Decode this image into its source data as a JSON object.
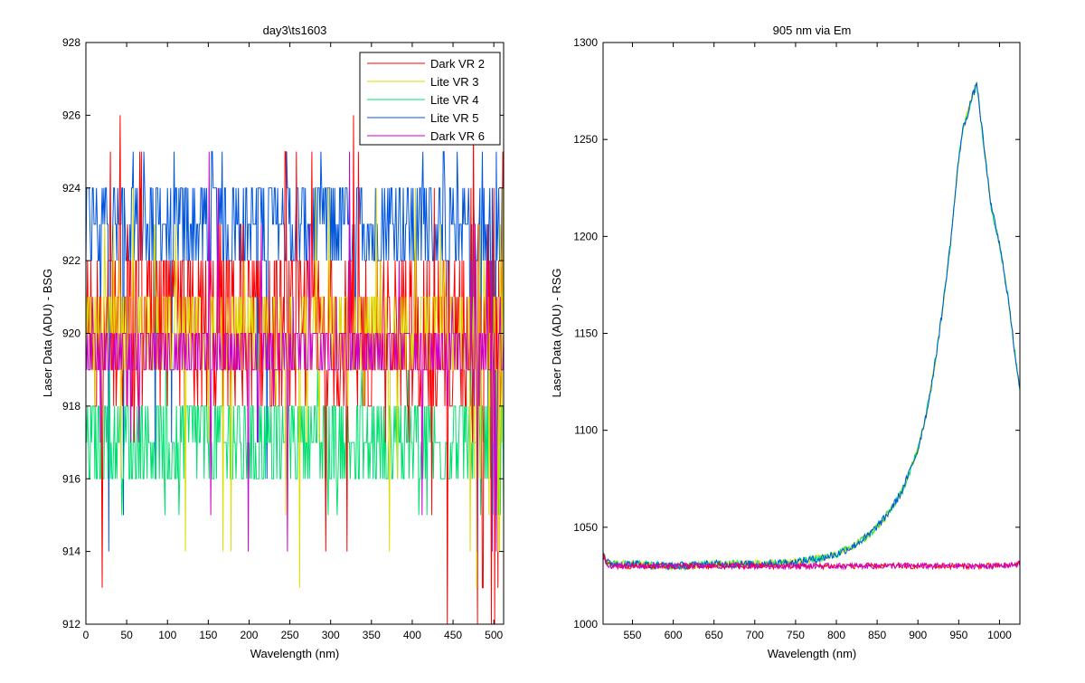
{
  "chart_data": [
    {
      "type": "line",
      "title": "day3\\ts1603",
      "xlabel": "Wavelength (nm)",
      "ylabel": "Laser Data (ADU) - BSG",
      "xlim": [
        0,
        512
      ],
      "ylim": [
        912,
        928
      ],
      "xticks": [
        0,
        50,
        100,
        150,
        200,
        250,
        300,
        350,
        400,
        450,
        500
      ],
      "yticks": [
        912,
        914,
        916,
        918,
        920,
        922,
        924,
        926,
        928
      ],
      "xtick_labels": [
        "0",
        "50",
        "100",
        "150",
        "200",
        "250",
        "300",
        "350",
        "400",
        "450",
        "500"
      ],
      "ytick_labels": [
        "912",
        "914",
        "916",
        "918",
        "920",
        "922",
        "924",
        "926",
        "928"
      ],
      "grid": false,
      "legend_position": "top-right",
      "note": "Noisy integer-valued traces (ADU counts) per pixel index 0-512; values summarized as baseline level with typical range.",
      "series": [
        {
          "name": "Dark VR 2",
          "color": "#ff0000",
          "baseline": 920,
          "range": [
            918,
            922
          ],
          "extreme_min": 912,
          "extreme_max": 926
        },
        {
          "name": "Lite VR 3",
          "color": "#dddd00",
          "baseline": 920,
          "range": [
            919,
            921
          ],
          "extreme_min": 913,
          "extreme_max": 924
        },
        {
          "name": "Lite VR 4",
          "color": "#00e070",
          "baseline": 917,
          "range": [
            916,
            918
          ],
          "extreme_min": 915,
          "extreme_max": 919
        },
        {
          "name": "Lite VR 5",
          "color": "#0055dd",
          "baseline": 923,
          "range": [
            922,
            924
          ],
          "extreme_min": 914,
          "extreme_max": 925
        },
        {
          "name": "Dark VR 6",
          "color": "#cc00cc",
          "baseline": 919.5,
          "range": [
            919,
            920
          ],
          "extreme_min": 914,
          "extreme_max": 925
        }
      ]
    },
    {
      "type": "line",
      "title": "905 nm via Em",
      "xlabel": "Wavelength (nm)",
      "ylabel": "Laser Data (ADU) - RSG",
      "xlim": [
        514,
        1025
      ],
      "ylim": [
        1000,
        1300
      ],
      "xticks": [
        550,
        600,
        650,
        700,
        750,
        800,
        850,
        900,
        950,
        1000
      ],
      "yticks": [
        1000,
        1050,
        1100,
        1150,
        1200,
        1250,
        1300
      ],
      "xtick_labels": [
        "550",
        "600",
        "650",
        "700",
        "750",
        "800",
        "850",
        "900",
        "950",
        "1000"
      ],
      "ytick_labels": [
        "1000",
        "1050",
        "1100",
        "1150",
        "1200",
        "1250",
        "1300"
      ],
      "grid": false,
      "curves": {
        "lit": {
          "colors": [
            "#dddd00",
            "#00e070",
            "#0055dd"
          ],
          "x": [
            514,
            518,
            525,
            550,
            600,
            650,
            700,
            750,
            780,
            800,
            820,
            840,
            860,
            880,
            900,
            910,
            920,
            930,
            940,
            950,
            955,
            960,
            965,
            970,
            972,
            975,
            980,
            985,
            990,
            1000,
            1010,
            1020,
            1025
          ],
          "y": [
            1037,
            1032,
            1031,
            1031,
            1030,
            1031,
            1031,
            1032,
            1034,
            1036,
            1040,
            1046,
            1055,
            1068,
            1090,
            1108,
            1132,
            1162,
            1197,
            1240,
            1255,
            1262,
            1270,
            1276,
            1280,
            1268,
            1250,
            1232,
            1215,
            1196,
            1170,
            1136,
            1122
          ]
        },
        "dark": {
          "colors": [
            "#ff0000",
            "#cc00cc"
          ],
          "x": [
            514,
            518,
            525,
            600,
            700,
            800,
            900,
            1000,
            1025
          ],
          "y": [
            1036,
            1031,
            1030,
            1030,
            1030,
            1030,
            1030,
            1030,
            1031
          ]
        }
      }
    }
  ]
}
